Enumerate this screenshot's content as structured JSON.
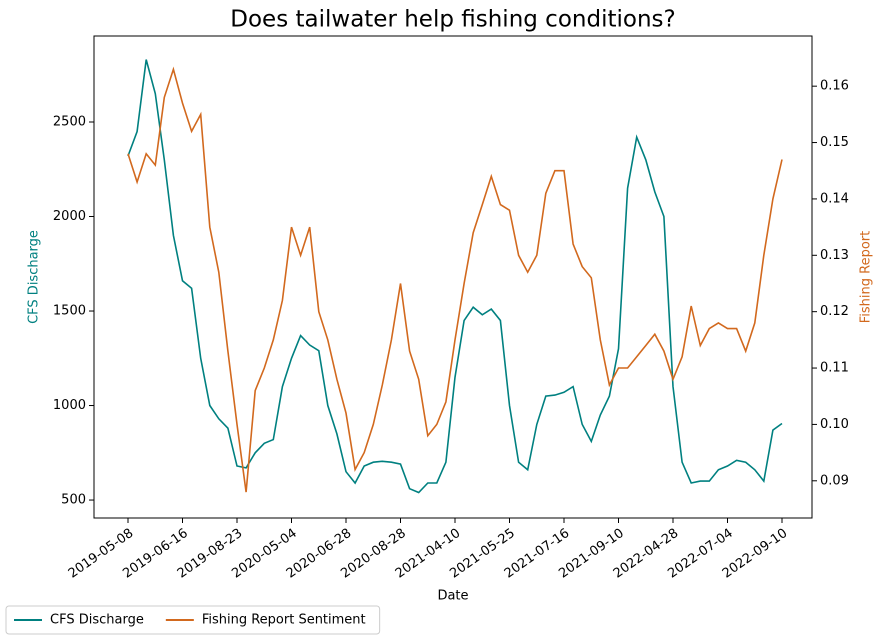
{
  "chart_data": {
    "type": "line",
    "title": "Does tailwater help fishing conditions?",
    "x_label": "Date",
    "y_label": "CFS Discharge",
    "y2_label": "Fishing Report",
    "categories": [
      "2019-05-08",
      null,
      null,
      null,
      null,
      null,
      "2019-06-16",
      null,
      null,
      null,
      null,
      null,
      "2019-08-23",
      null,
      null,
      null,
      null,
      null,
      "2020-05-04",
      null,
      null,
      null,
      null,
      null,
      "2020-06-28",
      null,
      null,
      null,
      null,
      null,
      "2020-08-28",
      null,
      null,
      null,
      null,
      null,
      "2021-04-10",
      null,
      null,
      null,
      null,
      null,
      "2021-05-25",
      null,
      null,
      null,
      null,
      null,
      "2021-07-16",
      null,
      null,
      null,
      null,
      null,
      "2021-09-10",
      null,
      null,
      null,
      null,
      null,
      "2022-04-28",
      null,
      null,
      null,
      null,
      null,
      "2022-07-04",
      null,
      null,
      null,
      null,
      null,
      "2022-09-10"
    ],
    "series": [
      {
        "name": "CFS Discharge",
        "color": "#008080",
        "axis": "y",
        "values": [
          2320,
          2450,
          2830,
          2650,
          2300,
          1900,
          1660,
          1620,
          1250,
          1000,
          930,
          880,
          680,
          670,
          750,
          800,
          820,
          1100,
          1250,
          1370,
          1320,
          1290,
          1000,
          850,
          650,
          590,
          680,
          700,
          705,
          700,
          690,
          560,
          540,
          590,
          590,
          700,
          1150,
          1450,
          1520,
          1480,
          1510,
          1450,
          1000,
          700,
          660,
          900,
          1050,
          1055,
          1070,
          1100,
          900,
          810,
          950,
          1050,
          1300,
          2150,
          2420,
          2300,
          2130,
          2000,
          1100,
          700,
          590,
          600,
          600,
          660,
          680,
          710,
          700,
          660,
          600,
          870,
          905
        ]
      },
      {
        "name": "Fishing Report Sentiment",
        "color": "#d2691e",
        "axis": "y2",
        "values": [
          0.148,
          0.143,
          0.148,
          0.146,
          0.158,
          0.163,
          0.157,
          0.152,
          0.155,
          0.135,
          0.127,
          0.113,
          0.1,
          0.088,
          0.106,
          0.11,
          0.115,
          0.122,
          0.135,
          0.13,
          0.135,
          0.12,
          0.115,
          0.108,
          0.102,
          0.092,
          0.095,
          0.1,
          0.107,
          0.115,
          0.125,
          0.113,
          0.108,
          0.098,
          0.1,
          0.104,
          0.115,
          0.125,
          0.134,
          0.139,
          0.144,
          0.139,
          0.138,
          0.13,
          0.127,
          0.13,
          0.141,
          0.145,
          0.145,
          0.132,
          0.128,
          0.126,
          0.115,
          0.107,
          0.11,
          0.11,
          0.112,
          0.114,
          0.116,
          0.113,
          0.108,
          0.112,
          0.121,
          0.114,
          0.117,
          0.118,
          0.117,
          0.117,
          0.113,
          0.118,
          0.13,
          0.14,
          0.147
        ]
      }
    ],
    "ylim": [
      405,
      2955
    ],
    "yticks": [
      500,
      1000,
      1500,
      2000,
      2500
    ],
    "y2lim": [
      0.0834,
      0.1689
    ],
    "y2ticks": [
      0.09,
      {
        "value": 0.1,
        "label": "0.10"
      },
      0.11,
      0.12,
      0.13,
      0.14,
      0.15,
      0.16
    ],
    "legend": "lower left"
  }
}
